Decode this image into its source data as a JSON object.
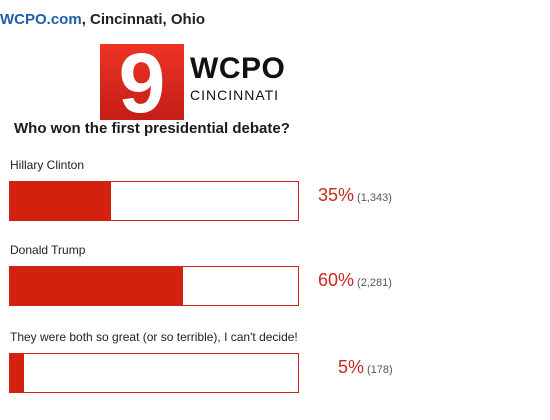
{
  "source": {
    "site": "WCPO.com",
    "location": ", Cincinnati, Ohio"
  },
  "logo": {
    "mark": "9",
    "name": "WCPO",
    "subtitle": "CINCINNATI",
    "color": "#e12b1f"
  },
  "poll": {
    "question": "Who won the first presidential debate?",
    "options": [
      {
        "label": "Hillary Clinton",
        "percent": "35%",
        "count": "(1,343)",
        "fraction": 0.35
      },
      {
        "label": "Donald Trump",
        "percent": "60%",
        "count": "(2,281)",
        "fraction": 0.6
      },
      {
        "label": "They were both so great (or so terrible), I can't decide!",
        "percent": "5%",
        "count": "(178)",
        "fraction": 0.05
      }
    ]
  },
  "colors": {
    "bar": "#d4210f",
    "percent_text": "#c8281e",
    "site_link": "#1f5fa8"
  }
}
